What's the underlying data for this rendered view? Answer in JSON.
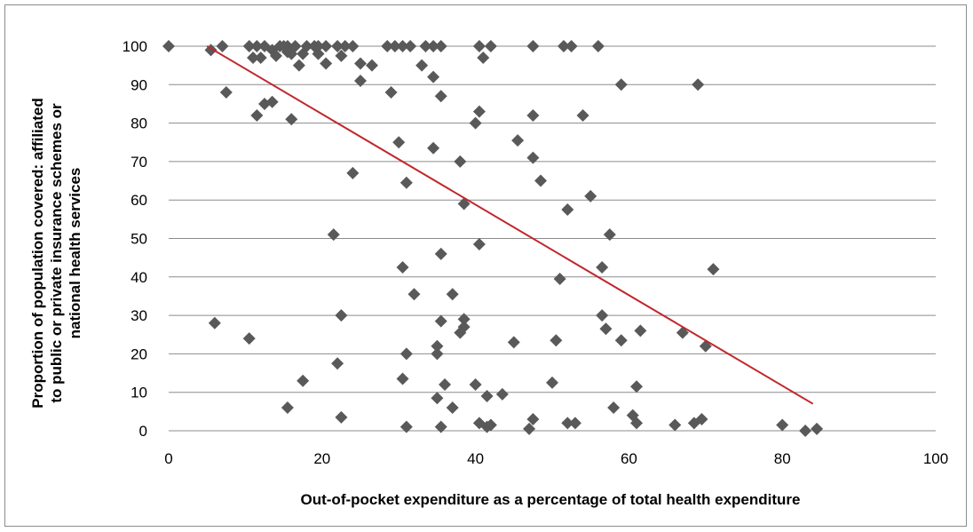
{
  "chart_data": {
    "type": "scatter",
    "title": "",
    "xlabel": "Out-of-pocket expenditure as a percentage of total health expenditure",
    "ylabel_lines": [
      "Proportion of population covered: affiliated",
      "to public or private insurance schemes or",
      "national health services"
    ],
    "xlim": [
      0,
      100
    ],
    "ylim": [
      0,
      100
    ],
    "x_ticks": [
      0,
      20,
      40,
      60,
      80,
      100
    ],
    "y_ticks": [
      0,
      10,
      20,
      30,
      40,
      50,
      60,
      70,
      80,
      90,
      100
    ],
    "grid": "horizontal",
    "legend": "none",
    "marker_color": "#595959",
    "trend_color": "#c0272d",
    "trendline": {
      "x": [
        5,
        84
      ],
      "y": [
        100,
        7
      ]
    },
    "series": [
      {
        "points": [
          [
            0,
            100
          ],
          [
            5.5,
            99
          ],
          [
            7,
            100
          ],
          [
            10.5,
            100
          ],
          [
            11.5,
            100
          ],
          [
            12.5,
            100
          ],
          [
            13.5,
            99
          ],
          [
            14.5,
            100
          ],
          [
            15,
            100
          ],
          [
            15.5,
            100
          ],
          [
            16.5,
            100
          ],
          [
            18,
            100
          ],
          [
            19,
            100
          ],
          [
            19.5,
            100
          ],
          [
            20.5,
            100
          ],
          [
            22,
            100
          ],
          [
            23,
            100
          ],
          [
            24,
            100
          ],
          [
            28.5,
            100
          ],
          [
            29.5,
            100
          ],
          [
            30.5,
            100
          ],
          [
            31.5,
            100
          ],
          [
            33.5,
            100
          ],
          [
            34.5,
            100
          ],
          [
            35.5,
            100
          ],
          [
            40.5,
            100
          ],
          [
            42,
            100
          ],
          [
            47.5,
            100
          ],
          [
            51.5,
            100
          ],
          [
            52.5,
            100
          ],
          [
            56,
            100
          ],
          [
            11,
            97
          ],
          [
            12,
            97
          ],
          [
            14,
            97.5
          ],
          [
            15.5,
            98.5
          ],
          [
            16,
            98
          ],
          [
            17.5,
            98
          ],
          [
            19.5,
            98
          ],
          [
            22.5,
            97.5
          ],
          [
            17,
            95
          ],
          [
            20.5,
            95.5
          ],
          [
            25,
            95.5
          ],
          [
            26.5,
            95
          ],
          [
            33,
            95
          ],
          [
            34.5,
            92
          ],
          [
            41,
            97
          ],
          [
            7.5,
            88
          ],
          [
            25,
            91
          ],
          [
            29,
            88
          ],
          [
            35.5,
            87
          ],
          [
            59,
            90
          ],
          [
            69,
            90
          ],
          [
            11.5,
            82
          ],
          [
            12.5,
            85
          ],
          [
            13.5,
            85.5
          ],
          [
            16,
            81
          ],
          [
            40.5,
            83
          ],
          [
            40,
            80
          ],
          [
            47.5,
            82
          ],
          [
            54,
            82
          ],
          [
            30,
            75
          ],
          [
            34.5,
            73.5
          ],
          [
            38,
            70
          ],
          [
            45.5,
            75.5
          ],
          [
            47.5,
            71
          ],
          [
            24,
            67
          ],
          [
            31,
            64.5
          ],
          [
            48.5,
            65
          ],
          [
            38.5,
            59
          ],
          [
            52,
            57.5
          ],
          [
            55,
            61
          ],
          [
            21.5,
            51
          ],
          [
            40.5,
            48.5
          ],
          [
            57.5,
            51
          ],
          [
            30.5,
            42.5
          ],
          [
            35.5,
            46
          ],
          [
            51,
            39.5
          ],
          [
            56.5,
            42.5
          ],
          [
            71,
            42
          ],
          [
            32,
            35.5
          ],
          [
            37,
            35.5
          ],
          [
            56.5,
            30
          ],
          [
            22.5,
            30
          ],
          [
            35.5,
            28.5
          ],
          [
            38.5,
            29
          ],
          [
            38,
            25.5
          ],
          [
            38.5,
            27
          ],
          [
            57,
            26.5
          ],
          [
            61.5,
            26
          ],
          [
            67,
            25.5
          ],
          [
            6,
            28
          ],
          [
            10.5,
            24
          ],
          [
            22,
            17.5
          ],
          [
            31,
            20
          ],
          [
            35,
            20
          ],
          [
            35,
            22
          ],
          [
            45,
            23
          ],
          [
            50.5,
            23.5
          ],
          [
            59,
            23.5
          ],
          [
            70,
            22
          ],
          [
            17.5,
            13
          ],
          [
            30.5,
            13.5
          ],
          [
            36,
            12
          ],
          [
            40,
            12
          ],
          [
            43.5,
            9.5
          ],
          [
            50,
            12.5
          ],
          [
            61,
            11.5
          ],
          [
            35,
            8.5
          ],
          [
            37,
            6
          ],
          [
            41.5,
            9
          ],
          [
            15.5,
            6
          ],
          [
            58,
            6
          ],
          [
            60.5,
            4
          ],
          [
            22.5,
            3.5
          ],
          [
            31,
            1
          ],
          [
            35.5,
            1
          ],
          [
            40.5,
            2
          ],
          [
            41.5,
            1
          ],
          [
            42,
            1.5
          ],
          [
            47,
            0.5
          ],
          [
            47.5,
            3
          ],
          [
            52,
            2
          ],
          [
            53,
            2
          ],
          [
            61,
            2
          ],
          [
            66,
            1.5
          ],
          [
            68.5,
            2
          ],
          [
            69.5,
            3
          ],
          [
            80,
            1.5
          ],
          [
            83,
            0
          ],
          [
            84.5,
            0.5
          ]
        ]
      }
    ]
  }
}
